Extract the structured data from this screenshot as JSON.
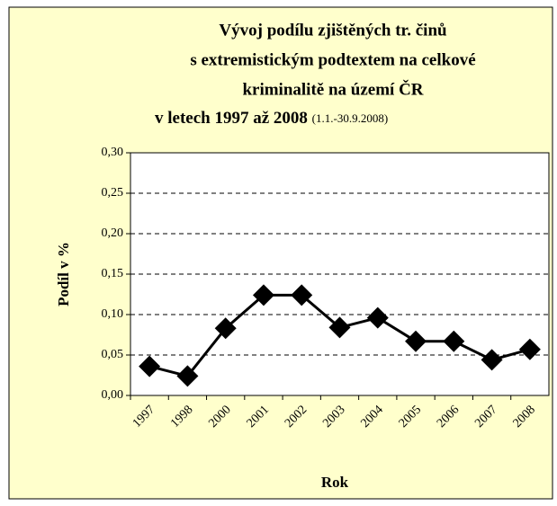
{
  "chart_data": {
    "type": "line",
    "title": [
      "Vývoj podílu zjištěných tr. činů",
      "s extremistickým podtextem na celkové",
      "kriminalitě na území ČR",
      "v letech 1997 až 2008"
    ],
    "subtitle": "(1.1.-30.9.2008)",
    "x_label": "Rok",
    "y_label": "Podíl v %",
    "categories": [
      "1997",
      "1998",
      "2000",
      "2001",
      "2002",
      "2003",
      "2004",
      "2005",
      "2006",
      "2007",
      "2008"
    ],
    "values": [
      0.036,
      0.024,
      0.083,
      0.124,
      0.124,
      0.084,
      0.096,
      0.067,
      0.067,
      0.044,
      0.057
    ],
    "color": "#000000",
    "ylim": [
      0,
      0.3
    ],
    "yticks": [
      {
        "value": 0,
        "label": "0,00"
      },
      {
        "value": 0.05,
        "label": "0,05"
      },
      {
        "value": 0.1,
        "label": "0,10"
      },
      {
        "value": 0.15,
        "label": "0,15"
      },
      {
        "value": 0.2,
        "label": "0,20"
      },
      {
        "value": 0.25,
        "label": "0,25"
      },
      {
        "value": 0.3,
        "label": "0,30"
      }
    ],
    "grid": true
  }
}
